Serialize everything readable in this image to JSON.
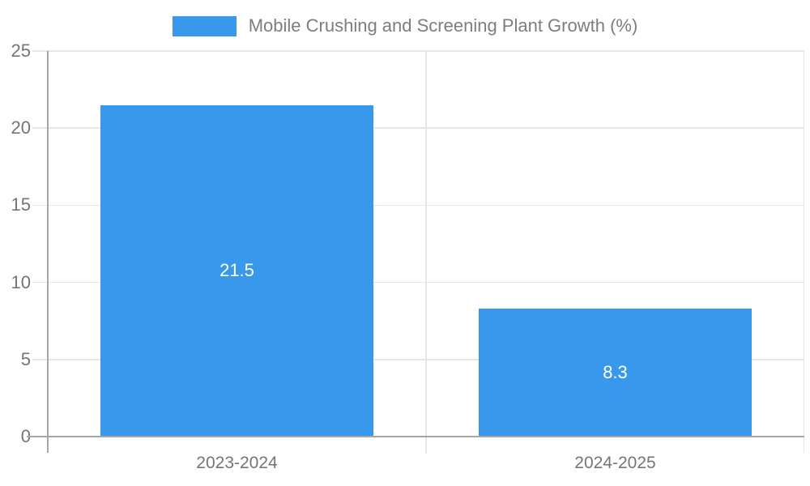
{
  "chart_data": {
    "type": "bar",
    "title": "Mobile Crushing and Screening Plant Growth (%)",
    "categories": [
      "2023-2024",
      "2024-2025"
    ],
    "series": [
      {
        "name": "Mobile Crushing and Screening Plant Growth (%)",
        "values": [
          21.5,
          8.3
        ],
        "value_labels": [
          "21.5",
          "8.3"
        ]
      }
    ],
    "xlabel": "",
    "ylabel": "",
    "ylim": [
      0,
      25
    ],
    "yticks": [
      0,
      5,
      10,
      15,
      20,
      25
    ],
    "grid": true,
    "legend_position": "top-center",
    "colors": {
      "bar": "#3899ec",
      "bar_label_text": "#ffffff",
      "axis_line": "#a6a6a6",
      "gridline": "#e6e6e6",
      "tick_label_text": "#757575",
      "legend_text": "#7d7d7d",
      "background": "#ffffff"
    }
  }
}
